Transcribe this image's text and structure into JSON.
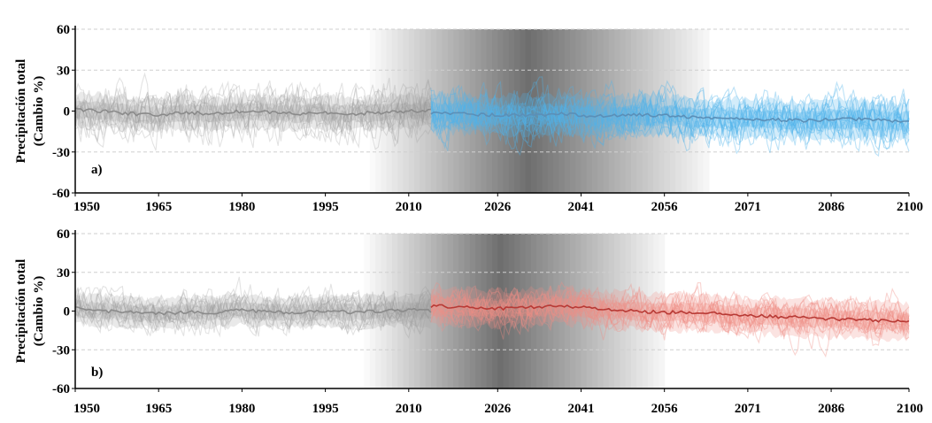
{
  "chart_data": [
    {
      "type": "line",
      "panel_label": "a)",
      "ylabel_line1": "Precipitación total",
      "ylabel_line2": "(Cambio %)",
      "xlim": [
        1950,
        2100
      ],
      "ylim": [
        -60,
        60
      ],
      "xticks": [
        "1950",
        "1965",
        "1980",
        "1995",
        "2010",
        "2026",
        "2041",
        "2056",
        "2071",
        "2086",
        "2100"
      ],
      "yticks": [
        "60",
        "30",
        "0",
        "-30",
        "-60"
      ],
      "grid": true,
      "historical_end": 2014,
      "colors": {
        "historical": "#9a9a9a",
        "projection": "#4fb3ea",
        "projection_mean": "#5a8fb8"
      },
      "spread_shading": {
        "start": 2003,
        "peak": 2031,
        "end": 2064
      },
      "series": [
        {
          "x": [
            1950,
            1955,
            1960,
            1965,
            1970,
            1975,
            1980,
            1985,
            1990,
            1995,
            2000,
            2005,
            2010,
            2014
          ],
          "y": [
            1,
            0,
            -2,
            -3,
            -1,
            -2,
            0,
            -1,
            -2,
            -1,
            -2,
            -1,
            0,
            0
          ]
        },
        {
          "x": [
            2014,
            2020,
            2026,
            2032,
            2038,
            2044,
            2050,
            2056,
            2062,
            2068,
            2074,
            2080,
            2086,
            2092,
            2100
          ],
          "y": [
            -1,
            -2,
            -3,
            -3,
            -2,
            -4,
            -3,
            -3,
            -5,
            -5,
            -6,
            -7,
            -6,
            -6,
            -8
          ]
        }
      ]
    },
    {
      "type": "line",
      "panel_label": "b)",
      "ylabel_line1": "Precipitación total",
      "ylabel_line2": "(Cambio %)",
      "xlim": [
        1950,
        2100
      ],
      "ylim": [
        -60,
        60
      ],
      "xticks": [
        "1950",
        "1965",
        "1980",
        "1995",
        "2010",
        "2026",
        "2041",
        "2056",
        "2071",
        "2086",
        "2100"
      ],
      "yticks": [
        "60",
        "30",
        "0",
        "-30",
        "-60"
      ],
      "grid": true,
      "historical_end": 2014,
      "colors": {
        "historical": "#9a9a9a",
        "projection": "#f08f86",
        "projection_mean": "#b83a35"
      },
      "spread_shading": {
        "start": 2002,
        "peak": 2026,
        "end": 2056
      },
      "series": [
        {
          "x": [
            1950,
            1955,
            1960,
            1965,
            1970,
            1975,
            1980,
            1985,
            1990,
            1995,
            2000,
            2005,
            2010,
            2014
          ],
          "y": [
            2,
            0,
            -1,
            -2,
            -1,
            -1,
            1,
            -1,
            -1,
            0,
            -1,
            0,
            1,
            0
          ]
        },
        {
          "x": [
            2014,
            2020,
            2026,
            2032,
            2038,
            2044,
            2050,
            2056,
            2062,
            2068,
            2074,
            2080,
            2086,
            2092,
            2100
          ],
          "y": [
            4,
            3,
            2,
            3,
            4,
            2,
            0,
            -1,
            -1,
            -3,
            -4,
            -5,
            -6,
            -7,
            -8
          ]
        }
      ]
    }
  ]
}
